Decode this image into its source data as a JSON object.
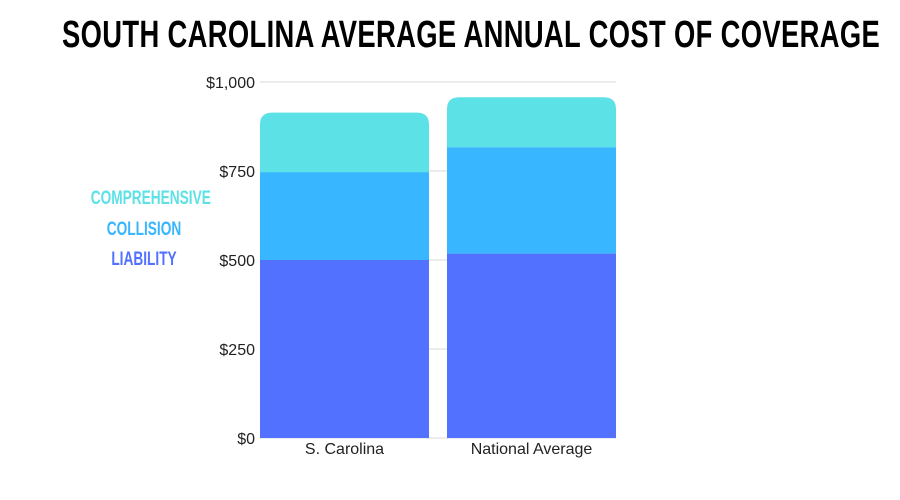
{
  "chart_data": {
    "type": "bar",
    "stacked": true,
    "title": "South Carolina Average Annual Cost of Coverage",
    "categories": [
      "S. Carolina",
      "National Average"
    ],
    "series": [
      {
        "name": "Liability",
        "color": "#5271ff",
        "values": [
          500,
          518
        ]
      },
      {
        "name": "Collision",
        "color": "#38b6ff",
        "values": [
          247,
          299
        ]
      },
      {
        "name": "Comprehensive",
        "color": "#5ce1e6",
        "values": [
          167,
          140
        ]
      }
    ],
    "ylim": [
      0,
      1000
    ],
    "yticks": [
      0,
      250,
      500,
      750,
      1000
    ],
    "ytick_labels": [
      "$0",
      "$250",
      "$500",
      "$750",
      "$1,000"
    ],
    "xlabel": "",
    "ylabel": "",
    "grid": true,
    "legend_placement": "left",
    "legend": [
      "Comprehensive",
      "Collision",
      "Liability"
    ]
  }
}
